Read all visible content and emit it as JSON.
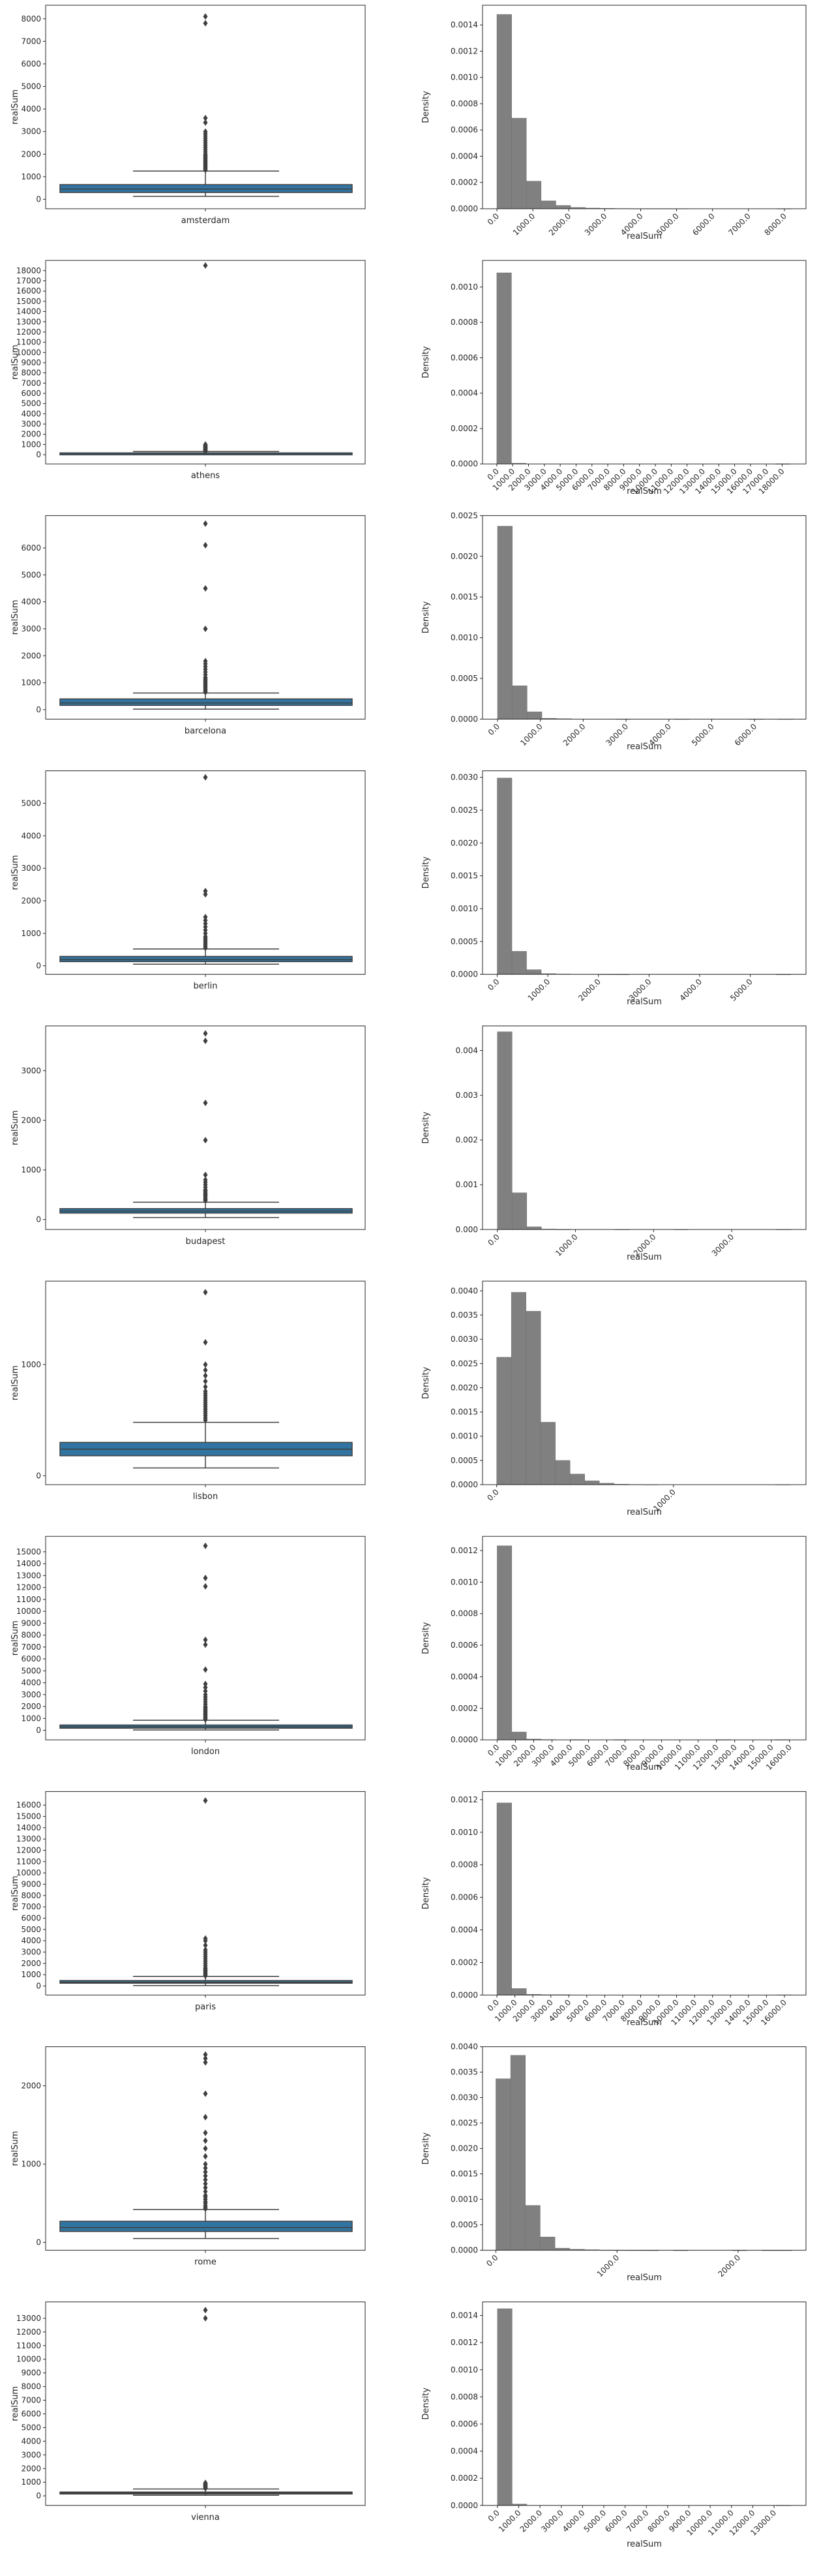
{
  "colors": {
    "box": "#3274a1",
    "hist": "#808080",
    "axis": "#262626"
  },
  "chart_data": [
    {
      "city": "amsterdam",
      "type": "box",
      "ylabel": "realSum",
      "xlabel": "amsterdam",
      "yticks": [
        0,
        1000,
        2000,
        3000,
        4000,
        5000,
        6000,
        7000,
        8000
      ],
      "ylim": [
        -420,
        8600
      ],
      "stats": {
        "q1": 300,
        "median": 450,
        "q3": 650,
        "whisker_low": 130,
        "whisker_high": 1250
      },
      "fliers": [
        1300,
        1350,
        1400,
        1450,
        1500,
        1550,
        1600,
        1650,
        1700,
        1750,
        1800,
        1850,
        1900,
        1950,
        2000,
        2100,
        2200,
        2300,
        2400,
        2500,
        2600,
        2700,
        2800,
        2900,
        3000,
        3400,
        3600,
        7800,
        8100
      ]
    },
    {
      "city": "amsterdam",
      "type": "hist",
      "ylabel": "Density",
      "xlabel": "realSum",
      "xticks": [
        0,
        1000,
        2000,
        3000,
        4000,
        5000,
        6000,
        7000,
        8000
      ],
      "ytick_labels": [
        "0.0000",
        "0.0002",
        "0.0004",
        "0.0006",
        "0.0008",
        "0.0010",
        "0.0012",
        "0.0014"
      ],
      "yticks": [
        0,
        0.0002,
        0.0004,
        0.0006,
        0.0008,
        0.001,
        0.0012,
        0.0014
      ],
      "xlim": [
        -400,
        8600
      ],
      "ylim": [
        0,
        0.00155
      ],
      "bin_width": 410,
      "start": 0,
      "values": [
        0.00148,
        0.00069,
        0.00021,
        6e-05,
        2.5e-05,
        1e-05,
        5e-06,
        3e-06,
        2e-06,
        1e-06,
        1e-06,
        1e-06,
        1e-06,
        0,
        0,
        0,
        0,
        0,
        0,
        5e-07
      ]
    },
    {
      "city": "athens",
      "type": "box",
      "ylabel": "realSum",
      "xlabel": "athens",
      "yticks": [
        0,
        1000,
        2000,
        3000,
        4000,
        5000,
        6000,
        7000,
        8000,
        9000,
        10000,
        11000,
        12000,
        13000,
        14000,
        15000,
        16000,
        17000,
        18000
      ],
      "ylim": [
        -900,
        19000
      ],
      "stats": {
        "q1": 90,
        "median": 130,
        "q3": 180,
        "whisker_low": 20,
        "whisker_high": 320
      },
      "fliers": [
        350,
        400,
        450,
        500,
        550,
        600,
        650,
        700,
        750,
        800,
        850,
        900,
        1000,
        18500
      ]
    },
    {
      "city": "athens",
      "type": "hist",
      "ylabel": "Density",
      "xlabel": "realSum",
      "xticks": [
        0,
        1000,
        2000,
        3000,
        4000,
        5000,
        6000,
        7000,
        8000,
        9000,
        10000,
        11000,
        12000,
        13000,
        14000,
        15000,
        16000,
        17000,
        18000
      ],
      "ytick_labels": [
        "0.0000",
        "0.0002",
        "0.0004",
        "0.0006",
        "0.0008",
        "0.0010"
      ],
      "yticks": [
        0,
        0.0002,
        0.0004,
        0.0006,
        0.0008,
        0.001
      ],
      "xlim": [
        -900,
        19500
      ],
      "ylim": [
        0,
        0.00115
      ],
      "bin_width": 925,
      "start": 0,
      "values": [
        0.00108,
        4e-06,
        0,
        0,
        0,
        0,
        0,
        0,
        0,
        0,
        0,
        0,
        0,
        0,
        0,
        0,
        0,
        0,
        0,
        2e-07
      ]
    },
    {
      "city": "barcelona",
      "type": "box",
      "ylabel": "realSum",
      "xlabel": "barcelona",
      "yticks": [
        0,
        1000,
        2000,
        3000,
        4000,
        5000,
        6000
      ],
      "ylim": [
        -350,
        7200
      ],
      "stats": {
        "q1": 160,
        "median": 250,
        "q3": 400,
        "whisker_low": 20,
        "whisker_high": 620
      },
      "fliers": [
        650,
        700,
        750,
        800,
        850,
        900,
        950,
        1000,
        1050,
        1100,
        1150,
        1200,
        1300,
        1400,
        1500,
        1600,
        1700,
        1800,
        3000,
        4500,
        6100,
        6900
      ]
    },
    {
      "city": "barcelona",
      "type": "hist",
      "ylabel": "Density",
      "xlabel": "realSum",
      "xticks": [
        0,
        1000,
        2000,
        3000,
        4000,
        5000,
        6000
      ],
      "ytick_labels": [
        "0.0000",
        "0.0005",
        "0.0010",
        "0.0015",
        "0.0020",
        "0.0025"
      ],
      "yticks": [
        0,
        0.0005,
        0.001,
        0.0015,
        0.002,
        0.0025
      ],
      "xlim": [
        -350,
        7200
      ],
      "ylim": [
        0,
        0.0025
      ],
      "bin_width": 345,
      "start": 0,
      "values": [
        0.00237,
        0.00041,
        9e-05,
        1e-05,
        5e-06,
        0,
        0,
        0,
        1e-06,
        0,
        0,
        0,
        1e-06,
        0,
        0,
        0,
        0,
        1e-06,
        0,
        1e-06
      ]
    },
    {
      "city": "berlin",
      "type": "box",
      "ylabel": "realSum",
      "xlabel": "berlin",
      "yticks": [
        0,
        1000,
        2000,
        3000,
        4000,
        5000
      ],
      "ylim": [
        -260,
        6000
      ],
      "stats": {
        "q1": 130,
        "median": 190,
        "q3": 290,
        "whisker_low": 50,
        "whisker_high": 520
      },
      "fliers": [
        550,
        600,
        650,
        700,
        750,
        800,
        850,
        900,
        1000,
        1100,
        1200,
        1300,
        1400,
        1500,
        2200,
        2300,
        5800
      ]
    },
    {
      "city": "berlin",
      "type": "hist",
      "ylabel": "Density",
      "xlabel": "realSum",
      "xticks": [
        0,
        1000,
        2000,
        3000,
        4000,
        5000
      ],
      "ytick_labels": [
        "0.0000",
        "0.0005",
        "0.0010",
        "0.0015",
        "0.0020",
        "0.0025",
        "0.0030"
      ],
      "yticks": [
        0,
        0.0005,
        0.001,
        0.0015,
        0.002,
        0.0025,
        0.003
      ],
      "xlim": [
        -290,
        6100
      ],
      "ylim": [
        0,
        0.0031
      ],
      "bin_width": 290,
      "start": 0,
      "values": [
        0.00299,
        0.00035,
        7e-05,
        1e-05,
        5e-06,
        0,
        0,
        2e-06,
        1e-06,
        0,
        0,
        0,
        0,
        0,
        0,
        0,
        0,
        0,
        0,
        1e-06
      ]
    },
    {
      "city": "budapest",
      "type": "box",
      "ylabel": "realSum",
      "xlabel": "budapest",
      "yticks": [
        0,
        1000,
        2000,
        3000
      ],
      "ylim": [
        -200,
        3900
      ],
      "stats": {
        "q1": 130,
        "median": 170,
        "q3": 220,
        "whisker_low": 40,
        "whisker_high": 350
      },
      "fliers": [
        380,
        400,
        420,
        450,
        480,
        500,
        520,
        550,
        580,
        600,
        650,
        700,
        750,
        800,
        900,
        1600,
        2350,
        3600,
        3750
      ]
    },
    {
      "city": "budapest",
      "type": "hist",
      "ylabel": "Density",
      "xlabel": "realSum",
      "xticks": [
        0,
        1000,
        2000,
        3000
      ],
      "ytick_labels": [
        "0.000",
        "0.001",
        "0.002",
        "0.003",
        "0.004"
      ],
      "yticks": [
        0,
        0.001,
        0.002,
        0.003,
        0.004
      ],
      "xlim": [
        -190,
        3950
      ],
      "ylim": [
        0,
        0.00455
      ],
      "bin_width": 188,
      "start": 0,
      "values": [
        0.00442,
        0.00082,
        6e-05,
        1e-05,
        3e-06,
        0,
        0,
        0,
        2e-06,
        0,
        0,
        0,
        2e-06,
        0,
        0,
        0,
        0,
        0,
        0,
        2e-06
      ]
    },
    {
      "city": "lisbon",
      "type": "box",
      "ylabel": "realSum",
      "xlabel": "lisbon",
      "yticks": [
        0,
        1000
      ],
      "ylim": [
        -80,
        1750
      ],
      "stats": {
        "q1": 180,
        "median": 240,
        "q3": 300,
        "whisker_low": 70,
        "whisker_high": 480
      },
      "fliers": [
        500,
        520,
        540,
        560,
        580,
        600,
        620,
        640,
        660,
        680,
        700,
        720,
        740,
        760,
        800,
        850,
        900,
        950,
        1000,
        1200,
        1650
      ]
    },
    {
      "city": "lisbon",
      "type": "hist",
      "ylabel": "Density",
      "xlabel": "realSum",
      "xticks": [
        0,
        1000
      ],
      "ytick_labels": [
        "0.0000",
        "0.0005",
        "0.0010",
        "0.0015",
        "0.0020",
        "0.0025",
        "0.0030",
        "0.0035",
        "0.0040"
      ],
      "yticks": [
        0,
        0.0005,
        0.001,
        0.0015,
        0.002,
        0.0025,
        0.003,
        0.0035,
        0.004
      ],
      "xlim": [
        -80,
        1750
      ],
      "ylim": [
        0,
        0.0042
      ],
      "bin_width": 83,
      "start": 0,
      "values": [
        0.00263,
        0.00397,
        0.00358,
        0.00129,
        0.0005,
        0.00022,
        8e-05,
        3e-05,
        1e-05,
        5e-06,
        2e-06,
        0,
        0,
        0,
        0,
        0,
        0,
        0,
        0,
        2e-06
      ]
    },
    {
      "city": "london",
      "type": "box",
      "ylabel": "realSum",
      "xlabel": "london",
      "yticks": [
        0,
        1000,
        2000,
        3000,
        4000,
        5000,
        6000,
        7000,
        8000,
        9000,
        10000,
        11000,
        12000,
        13000,
        14000,
        15000
      ],
      "ylim": [
        -800,
        16300
      ],
      "stats": {
        "q1": 180,
        "median": 300,
        "q3": 450,
        "whisker_low": 30,
        "whisker_high": 850
      },
      "fliers": [
        900,
        1000,
        1100,
        1200,
        1300,
        1400,
        1500,
        1600,
        1700,
        1800,
        1900,
        2000,
        2200,
        2400,
        2600,
        2800,
        3000,
        3300,
        3600,
        3900,
        5100,
        7200,
        7600,
        12100,
        12800,
        15500
      ]
    },
    {
      "city": "london",
      "type": "hist",
      "ylabel": "Density",
      "xlabel": "realSum",
      "xticks": [
        0,
        1000,
        2000,
        3000,
        4000,
        5000,
        6000,
        7000,
        8000,
        9000,
        10000,
        11000,
        12000,
        13000,
        14000,
        15000,
        16000
      ],
      "ytick_labels": [
        "0.0000",
        "0.0002",
        "0.0004",
        "0.0006",
        "0.0008",
        "0.0010",
        "0.0012"
      ],
      "yticks": [
        0,
        0.0002,
        0.0004,
        0.0006,
        0.0008,
        0.001,
        0.0012
      ],
      "xlim": [
        -800,
        16900
      ],
      "ylim": [
        0,
        0.00129
      ],
      "bin_width": 800,
      "start": 0,
      "values": [
        0.00123,
        5e-05,
        5e-06,
        2e-06,
        0,
        1e-06,
        0,
        0,
        1e-06,
        0,
        0,
        0,
        0,
        0,
        0,
        1e-06,
        0,
        0,
        0,
        1e-06
      ]
    },
    {
      "city": "paris",
      "type": "box",
      "ylabel": "realSum",
      "xlabel": "paris",
      "yticks": [
        0,
        1000,
        2000,
        3000,
        4000,
        5000,
        6000,
        7000,
        8000,
        9000,
        10000,
        11000,
        12000,
        13000,
        14000,
        15000,
        16000
      ],
      "ylim": [
        -800,
        17200
      ],
      "stats": {
        "q1": 250,
        "median": 330,
        "q3": 480,
        "whisker_low": 40,
        "whisker_high": 850
      },
      "fliers": [
        900,
        1000,
        1100,
        1200,
        1300,
        1400,
        1500,
        1600,
        1800,
        2000,
        2200,
        2400,
        2600,
        2800,
        3000,
        3200,
        3600,
        4000,
        4200,
        16400
      ]
    },
    {
      "city": "paris",
      "type": "hist",
      "ylabel": "Density",
      "xlabel": "realSum",
      "xticks": [
        0,
        1000,
        2000,
        3000,
        4000,
        5000,
        6000,
        7000,
        8000,
        9000,
        10000,
        11000,
        12000,
        13000,
        14000,
        15000,
        16000
      ],
      "ytick_labels": [
        "0.0000",
        "0.0002",
        "0.0004",
        "0.0006",
        "0.0008",
        "0.0010",
        "0.0012"
      ],
      "yticks": [
        0,
        0.0002,
        0.0004,
        0.0006,
        0.0008,
        0.001,
        0.0012
      ],
      "xlim": [
        -800,
        17200
      ],
      "ylim": [
        0,
        0.00125
      ],
      "bin_width": 820,
      "start": 0,
      "values": [
        0.00118,
        4e-05,
        4e-06,
        2e-06,
        2e-06,
        0,
        0,
        0,
        0,
        0,
        0,
        0,
        0,
        0,
        0,
        0,
        0,
        0,
        0,
        1e-06
      ]
    },
    {
      "city": "rome",
      "type": "box",
      "ylabel": "realSum",
      "xlabel": "rome",
      "yticks": [
        0,
        1000,
        2000
      ],
      "ylim": [
        -100,
        2500
      ],
      "stats": {
        "q1": 140,
        "median": 190,
        "q3": 270,
        "whisker_low": 50,
        "whisker_high": 420
      },
      "fliers": [
        430,
        450,
        470,
        500,
        520,
        550,
        580,
        600,
        650,
        700,
        750,
        800,
        850,
        900,
        950,
        1000,
        1100,
        1200,
        1300,
        1400,
        1600,
        1900,
        2300,
        2350,
        2400
      ]
    },
    {
      "city": "rome",
      "type": "hist",
      "ylabel": "Density",
      "xlabel": "realSum",
      "xticks": [
        0,
        1000,
        2000
      ],
      "ytick_labels": [
        "0.0000",
        "0.0005",
        "0.0010",
        "0.0015",
        "0.0020",
        "0.0025",
        "0.0030",
        "0.0035",
        "0.0040"
      ],
      "yticks": [
        0,
        0.0005,
        0.001,
        0.0015,
        0.002,
        0.0025,
        0.003,
        0.0035,
        0.004
      ],
      "xlim": [
        -110,
        2560
      ],
      "ylim": [
        0,
        0.004
      ],
      "bin_width": 122,
      "start": 0,
      "values": [
        0.00337,
        0.00383,
        0.00088,
        0.00026,
        4e-05,
        2e-05,
        1e-05,
        5e-06,
        3e-06,
        2e-06,
        1e-06,
        0,
        1e-06,
        0,
        0,
        0,
        1e-06,
        0,
        1e-06,
        1e-06
      ]
    },
    {
      "city": "vienna",
      "type": "box",
      "ylabel": "realSum",
      "xlabel": "vienna",
      "yticks": [
        0,
        1000,
        2000,
        3000,
        4000,
        5000,
        6000,
        7000,
        8000,
        9000,
        10000,
        11000,
        12000,
        13000
      ],
      "ylim": [
        -700,
        14200
      ],
      "stats": {
        "q1": 160,
        "median": 210,
        "q3": 280,
        "whisker_low": 40,
        "whisker_high": 500
      },
      "fliers": [
        550,
        600,
        650,
        700,
        750,
        800,
        850,
        900,
        950,
        13000,
        13600
      ]
    },
    {
      "city": "vienna",
      "type": "hist",
      "ylabel": "Density",
      "xlabel": "realSum",
      "xticks": [
        0,
        1000,
        2000,
        3000,
        4000,
        5000,
        6000,
        7000,
        8000,
        9000,
        10000,
        11000,
        12000,
        13000
      ],
      "ytick_labels": [
        "0.0000",
        "0.0002",
        "0.0004",
        "0.0006",
        "0.0008",
        "0.0010",
        "0.0012",
        "0.0014"
      ],
      "yticks": [
        0,
        0.0002,
        0.0004,
        0.0006,
        0.0008,
        0.001,
        0.0012,
        0.0014
      ],
      "xlim": [
        -700,
        14500
      ],
      "ylim": [
        0,
        0.0015
      ],
      "bin_width": 690,
      "start": 0,
      "values": [
        0.00145,
        1e-05,
        0,
        0,
        0,
        0,
        0,
        0,
        0,
        0,
        0,
        0,
        0,
        0,
        0,
        0,
        0,
        0,
        0,
        1e-06
      ]
    }
  ]
}
